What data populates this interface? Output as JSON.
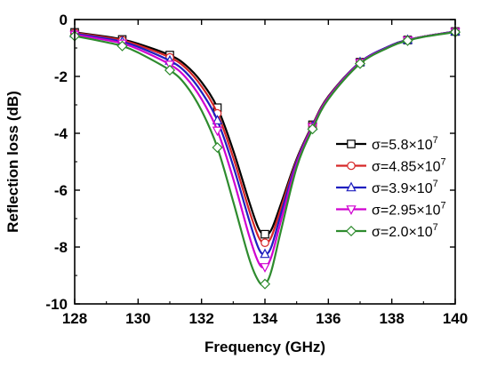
{
  "chart_data": {
    "type": "line",
    "title": "",
    "xlabel": "Frequency (GHz)",
    "ylabel": "Reflection loss (dB)",
    "xlim": [
      128,
      140
    ],
    "ylim": [
      -10,
      0
    ],
    "xticks": [
      128,
      130,
      132,
      134,
      136,
      138,
      140
    ],
    "yticks": [
      0,
      -2,
      -4,
      -6,
      -8,
      -10
    ],
    "grid": false,
    "legend_position": "right",
    "series": [
      {
        "name": "σ=5.8×10⁷",
        "label_base": "σ=5.8×10",
        "label_exp": "7",
        "color": "#000000",
        "marker": "square",
        "x": [
          128,
          129,
          129.5,
          130,
          131,
          131.5,
          132,
          132.5,
          133,
          133.5,
          133.8,
          134,
          134.2,
          134.5,
          135,
          135.5,
          136,
          137,
          138,
          138.5,
          139,
          140
        ],
        "y": [
          -0.45,
          -0.6,
          -0.7,
          -0.85,
          -1.25,
          -1.6,
          -2.2,
          -3.1,
          -4.6,
          -6.4,
          -7.35,
          -7.55,
          -7.4,
          -6.5,
          -4.9,
          -3.7,
          -2.7,
          -1.5,
          -0.9,
          -0.72,
          -0.6,
          -0.42
        ],
        "marker_x": [
          128,
          129.5,
          131,
          132.5,
          134,
          135.5,
          137,
          138.5,
          140
        ]
      },
      {
        "name": "σ=4.85×10⁷",
        "label_base": "σ=4.85×10",
        "label_exp": "7",
        "color": "#d62728",
        "marker": "circle",
        "x": [
          128,
          129,
          129.5,
          130,
          131,
          131.5,
          132,
          132.5,
          133,
          133.5,
          133.8,
          134,
          134.2,
          134.5,
          135,
          135.5,
          136,
          137,
          138,
          138.5,
          139,
          140
        ],
        "y": [
          -0.47,
          -0.63,
          -0.73,
          -0.9,
          -1.33,
          -1.7,
          -2.35,
          -3.3,
          -4.85,
          -6.7,
          -7.65,
          -7.85,
          -7.65,
          -6.65,
          -4.95,
          -3.72,
          -2.72,
          -1.5,
          -0.9,
          -0.72,
          -0.6,
          -0.42
        ],
        "marker_x": [
          128,
          129.5,
          131,
          132.5,
          134,
          135.5,
          137,
          138.5,
          140
        ]
      },
      {
        "name": "σ=3.9×10⁷",
        "label_base": "σ=3.9×10",
        "label_exp": "7",
        "color": "#1f1fbf",
        "marker": "triangle-up",
        "x": [
          128,
          129,
          129.5,
          130,
          131,
          131.5,
          132,
          132.5,
          133,
          133.5,
          133.8,
          134,
          134.2,
          134.5,
          135,
          135.5,
          136,
          137,
          138,
          138.5,
          139,
          140
        ],
        "y": [
          -0.5,
          -0.67,
          -0.78,
          -0.96,
          -1.45,
          -1.85,
          -2.55,
          -3.55,
          -5.15,
          -7.05,
          -8.05,
          -8.25,
          -8.0,
          -6.85,
          -5.0,
          -3.75,
          -2.74,
          -1.5,
          -0.9,
          -0.72,
          -0.6,
          -0.42
        ],
        "marker_x": [
          128,
          129.5,
          131,
          132.5,
          134,
          135.5,
          137,
          138.5,
          140
        ]
      },
      {
        "name": "σ=2.95×10⁷",
        "label_base": "σ=2.95×10",
        "label_exp": "7",
        "color": "#d000d0",
        "marker": "triangle-down",
        "x": [
          128,
          129,
          129.5,
          130,
          131,
          131.5,
          132,
          132.5,
          133,
          133.5,
          133.8,
          134,
          134.2,
          134.5,
          135,
          135.5,
          136,
          137,
          138,
          138.5,
          139,
          140
        ],
        "y": [
          -0.53,
          -0.72,
          -0.84,
          -1.04,
          -1.58,
          -2.03,
          -2.8,
          -3.9,
          -5.6,
          -7.6,
          -8.55,
          -8.7,
          -8.35,
          -7.1,
          -5.08,
          -3.78,
          -2.76,
          -1.52,
          -0.92,
          -0.73,
          -0.6,
          -0.43
        ],
        "marker_x": [
          128,
          129.5,
          131,
          132.5,
          134,
          135.5,
          137,
          138.5,
          140
        ]
      },
      {
        "name": "σ=2.0×10⁷",
        "label_base": "σ=2.0×10",
        "label_exp": "7",
        "color": "#2e8b2e",
        "marker": "diamond",
        "x": [
          128,
          129,
          129.5,
          130,
          131,
          131.5,
          132,
          132.5,
          133,
          133.5,
          133.8,
          134,
          134.2,
          134.5,
          135,
          135.5,
          136,
          137,
          138,
          138.5,
          139,
          140
        ],
        "y": [
          -0.58,
          -0.8,
          -0.93,
          -1.16,
          -1.78,
          -2.3,
          -3.2,
          -4.5,
          -6.4,
          -8.4,
          -9.2,
          -9.3,
          -8.85,
          -7.45,
          -5.2,
          -3.85,
          -2.8,
          -1.55,
          -0.93,
          -0.74,
          -0.61,
          -0.44
        ],
        "marker_x": [
          128,
          129.5,
          131,
          132.5,
          134,
          135.5,
          137,
          138.5,
          140
        ]
      }
    ]
  }
}
